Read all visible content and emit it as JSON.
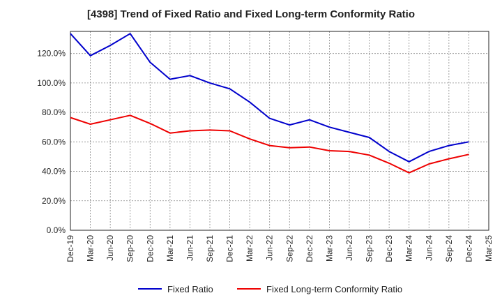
{
  "chart_data": {
    "type": "line",
    "title": "[4398]  Trend of Fixed Ratio and Fixed Long-term Conformity Ratio",
    "xlabel": "",
    "ylabel": "",
    "ylim": [
      0,
      135
    ],
    "y_ticks": [
      "0.0%",
      "20.0%",
      "40.0%",
      "60.0%",
      "80.0%",
      "100.0%",
      "120.0%"
    ],
    "x_tick_labels": [
      "Dec-19",
      "Mar-20",
      "Jun-20",
      "Sep-20",
      "Dec-20",
      "Mar-21",
      "Jun-21",
      "Sep-21",
      "Dec-21",
      "Mar-22",
      "Jun-22",
      "Sep-22",
      "Dec-22",
      "Mar-23",
      "Jun-23",
      "Sep-23",
      "Dec-23",
      "Mar-24",
      "Jun-24",
      "Sep-24",
      "Dec-24",
      "Mar-25"
    ],
    "x": [
      "Dec-19",
      "Mar-20",
      "Jun-20",
      "Sep-20",
      "Dec-20",
      "Mar-21",
      "Jun-21",
      "Sep-21",
      "Dec-21",
      "Mar-22",
      "Jun-22",
      "Sep-22",
      "Dec-22",
      "Mar-23",
      "Jun-23",
      "Sep-23",
      "Dec-23",
      "Mar-24",
      "Jun-24",
      "Sep-24",
      "Dec-24"
    ],
    "grid": true,
    "legend_position": "bottom",
    "series": [
      {
        "name": "Fixed Ratio",
        "color": "#0000cc",
        "values": [
          133.5,
          118.5,
          125.5,
          133.5,
          114,
          102.5,
          105,
          100,
          96,
          87,
          76,
          71.5,
          75,
          70,
          66.5,
          63,
          53.5,
          46.5,
          53.5,
          57.5,
          60
        ]
      },
      {
        "name": "Fixed Long-term Conformity Ratio",
        "color": "#ee0000",
        "values": [
          76.5,
          72,
          75,
          78,
          72.5,
          66,
          67.5,
          68,
          67.5,
          62,
          57.5,
          56,
          56.5,
          54,
          53.5,
          51,
          45.5,
          39,
          45,
          48.5,
          51.5
        ]
      }
    ]
  }
}
